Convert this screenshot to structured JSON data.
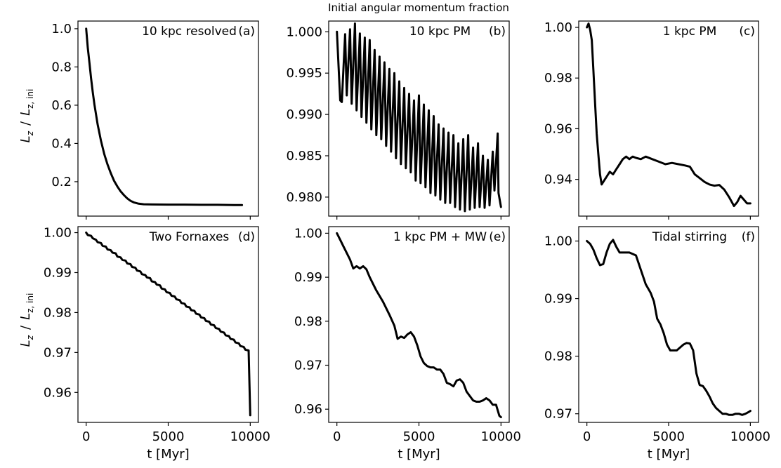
{
  "chart_data": {
    "title": "Initial angular momentum fraction",
    "xlabel": "t [Myr]",
    "ylabel_main": "L",
    "ylabel_sub": "z",
    "ylabel_slash": "/",
    "ylabel_ini_sub": "z, ini",
    "panels": [
      {
        "id": "a",
        "type": "line",
        "label": "10 kpc resolved",
        "letter": "(a)",
        "xlim": [
          -500,
          10500
        ],
        "ylim": [
          0.02,
          1.04
        ],
        "xticks": [
          0,
          5000,
          10000
        ],
        "xtick_labels": [
          "0",
          "5000",
          "10000"
        ],
        "yticks": [
          0.2,
          0.4,
          0.6,
          0.8,
          1.0
        ],
        "ytick_labels": [
          "0.2",
          "0.4",
          "0.6",
          "0.8",
          "1.0"
        ],
        "x": [
          0,
          100,
          200,
          300,
          400,
          500,
          700,
          900,
          1100,
          1300,
          1500,
          1700,
          1900,
          2100,
          2300,
          2500,
          2700,
          2900,
          3200,
          3500,
          4000,
          5000,
          6000,
          7000,
          8000,
          9000,
          9500
        ],
        "values": [
          1.0,
          0.9,
          0.82,
          0.74,
          0.67,
          0.605,
          0.5,
          0.415,
          0.345,
          0.29,
          0.245,
          0.205,
          0.175,
          0.15,
          0.13,
          0.113,
          0.1,
          0.092,
          0.085,
          0.082,
          0.081,
          0.08,
          0.08,
          0.079,
          0.079,
          0.078,
          0.078
        ]
      },
      {
        "id": "b",
        "type": "line",
        "label": "10 kpc PM",
        "letter": "(b)",
        "xlim": [
          -500,
          10500
        ],
        "ylim": [
          0.9777,
          1.0013
        ],
        "xticks": [
          0,
          5000,
          10000
        ],
        "xtick_labels": [
          "0",
          "5000",
          "10000"
        ],
        "yticks": [
          0.98,
          0.985,
          0.99,
          0.995,
          1.0
        ],
        "ytick_labels": [
          "0.980",
          "0.985",
          "0.990",
          "0.995",
          "1.000"
        ],
        "x": [
          0,
          200,
          300,
          500,
          600,
          800,
          900,
          1100,
          1200,
          1400,
          1500,
          1700,
          1800,
          2000,
          2100,
          2300,
          2400,
          2600,
          2700,
          2900,
          3000,
          3200,
          3300,
          3500,
          3600,
          3800,
          3900,
          4100,
          4200,
          4400,
          4500,
          4700,
          4800,
          5000,
          5100,
          5300,
          5400,
          5600,
          5700,
          5900,
          6000,
          6200,
          6300,
          6500,
          6600,
          6800,
          6900,
          7100,
          7200,
          7400,
          7500,
          7700,
          7800,
          8000,
          8100,
          8300,
          8400,
          8600,
          8700,
          8900,
          9000,
          9200,
          9300,
          9500,
          9600,
          9800,
          9850,
          10000
        ],
        "values": [
          1.0,
          0.9917,
          0.9915,
          0.9997,
          0.9923,
          1.0003,
          0.9913,
          1.001,
          0.9905,
          0.9998,
          0.9897,
          0.9993,
          0.989,
          0.999,
          0.9882,
          0.9978,
          0.9875,
          0.997,
          0.987,
          0.9963,
          0.9862,
          0.9955,
          0.9855,
          0.995,
          0.9847,
          0.994,
          0.984,
          0.9932,
          0.9835,
          0.9925,
          0.983,
          0.9917,
          0.982,
          0.9923,
          0.9817,
          0.9912,
          0.9812,
          0.9905,
          0.9805,
          0.9898,
          0.9802,
          0.9888,
          0.9797,
          0.9883,
          0.9793,
          0.9878,
          0.9793,
          0.9875,
          0.9788,
          0.9865,
          0.9785,
          0.987,
          0.9783,
          0.9875,
          0.9785,
          0.986,
          0.9787,
          0.9865,
          0.9788,
          0.985,
          0.9787,
          0.9845,
          0.979,
          0.9855,
          0.9808,
          0.9877,
          0.9805,
          0.9788
        ]
      },
      {
        "id": "c",
        "type": "line",
        "label": "1 kpc PM",
        "letter": "(c)",
        "xlim": [
          -500,
          10500
        ],
        "ylim": [
          0.9255,
          1.0025
        ],
        "xticks": [
          0,
          5000,
          10000
        ],
        "xtick_labels": [
          "0",
          "5000",
          "10000"
        ],
        "yticks": [
          0.94,
          0.96,
          0.98,
          1.0
        ],
        "ytick_labels": [
          "0.94",
          "0.96",
          "0.98",
          "1.00"
        ],
        "x": [
          0,
          100,
          200,
          300,
          400,
          500,
          600,
          700,
          800,
          900,
          1000,
          1200,
          1400,
          1600,
          1800,
          2000,
          2200,
          2400,
          2600,
          2800,
          3000,
          3300,
          3600,
          4000,
          4400,
          4800,
          5200,
          5600,
          6000,
          6300,
          6600,
          6900,
          7200,
          7500,
          7800,
          8100,
          8400,
          8700,
          9000,
          9200,
          9400,
          9600,
          9800,
          10000
        ],
        "values": [
          1.0,
          1.0015,
          0.999,
          0.995,
          0.983,
          0.97,
          0.958,
          0.95,
          0.942,
          0.938,
          0.939,
          0.941,
          0.943,
          0.942,
          0.944,
          0.946,
          0.948,
          0.949,
          0.948,
          0.949,
          0.9485,
          0.948,
          0.949,
          0.948,
          0.947,
          0.946,
          0.9465,
          0.946,
          0.9455,
          0.945,
          0.942,
          0.9405,
          0.939,
          0.938,
          0.9375,
          0.9378,
          0.936,
          0.933,
          0.9295,
          0.931,
          0.9335,
          0.932,
          0.9305,
          0.9305
        ]
      },
      {
        "id": "d",
        "type": "line",
        "label": "Two Fornaxes",
        "letter": "(d)",
        "xlim": [
          -500,
          10500
        ],
        "ylim": [
          0.9525,
          1.0015
        ],
        "xticks": [
          0,
          5000,
          10000
        ],
        "xtick_labels": [
          "0",
          "5000",
          "10000"
        ],
        "yticks": [
          0.96,
          0.97,
          0.98,
          0.99,
          1.0
        ],
        "ytick_labels": [
          "0.96",
          "0.97",
          "0.98",
          "0.99",
          "1.00"
        ],
        "x": [
          0,
          100,
          300,
          400,
          600,
          700,
          900,
          1000,
          1200,
          1300,
          1500,
          1600,
          1800,
          1900,
          2100,
          2200,
          2400,
          2500,
          2700,
          2800,
          3000,
          3100,
          3300,
          3400,
          3600,
          3700,
          3900,
          4000,
          4200,
          4300,
          4500,
          4600,
          4800,
          4900,
          5100,
          5200,
          5400,
          5500,
          5700,
          5800,
          6000,
          6100,
          6300,
          6400,
          6600,
          6700,
          6900,
          7000,
          7200,
          7300,
          7500,
          7600,
          7800,
          7900,
          8100,
          8200,
          8400,
          8500,
          8700,
          8800,
          9000,
          9100,
          9300,
          9400,
          9600,
          9700,
          9900,
          10000
        ],
        "values": [
          1.0,
          0.9994,
          0.9992,
          0.9986,
          0.9982,
          0.9976,
          0.9974,
          0.9967,
          0.9965,
          0.9958,
          0.9956,
          0.995,
          0.9948,
          0.994,
          0.9938,
          0.9932,
          0.993,
          0.9923,
          0.9921,
          0.9914,
          0.9912,
          0.9905,
          0.9903,
          0.9896,
          0.9894,
          0.9888,
          0.9886,
          0.9878,
          0.9876,
          0.987,
          0.9868,
          0.986,
          0.9858,
          0.9851,
          0.9849,
          0.9842,
          0.984,
          0.9833,
          0.9831,
          0.9824,
          0.9822,
          0.9815,
          0.9813,
          0.9806,
          0.9804,
          0.9797,
          0.9795,
          0.9788,
          0.9786,
          0.9779,
          0.9777,
          0.977,
          0.9768,
          0.9761,
          0.9759,
          0.9752,
          0.975,
          0.9743,
          0.9741,
          0.9734,
          0.9732,
          0.9725,
          0.9723,
          0.9716,
          0.9714,
          0.9707,
          0.9705,
          0.9543
        ]
      },
      {
        "id": "e",
        "type": "line",
        "label": "1 kpc PM + MW",
        "letter": "(e)",
        "xlim": [
          -500,
          10500
        ],
        "ylim": [
          0.957,
          1.0015
        ],
        "xticks": [
          0,
          5000,
          10000
        ],
        "xtick_labels": [
          "0",
          "5000",
          "10000"
        ],
        "yticks": [
          0.96,
          0.97,
          0.98,
          0.99,
          1.0
        ],
        "ytick_labels": [
          "0.96",
          "0.97",
          "0.98",
          "0.99",
          "1.00"
        ],
        "x": [
          0,
          200,
          400,
          600,
          800,
          1000,
          1200,
          1400,
          1600,
          1800,
          2000,
          2400,
          2800,
          3200,
          3500,
          3700,
          3900,
          4100,
          4300,
          4500,
          4700,
          4900,
          5100,
          5300,
          5500,
          5700,
          5900,
          6100,
          6300,
          6500,
          6700,
          6900,
          7100,
          7300,
          7500,
          7700,
          7900,
          8100,
          8300,
          8500,
          8700,
          8900,
          9100,
          9300,
          9500,
          9700,
          9900,
          10000
        ],
        "values": [
          1.0,
          0.9985,
          0.997,
          0.9955,
          0.994,
          0.992,
          0.9925,
          0.992,
          0.9925,
          0.9918,
          0.99,
          0.987,
          0.9845,
          0.9815,
          0.979,
          0.976,
          0.9765,
          0.9762,
          0.977,
          0.9775,
          0.9765,
          0.9745,
          0.972,
          0.9705,
          0.9698,
          0.9695,
          0.9695,
          0.969,
          0.969,
          0.968,
          0.966,
          0.9657,
          0.9652,
          0.9665,
          0.9668,
          0.966,
          0.964,
          0.963,
          0.962,
          0.9617,
          0.9617,
          0.962,
          0.9625,
          0.962,
          0.961,
          0.961,
          0.9585,
          0.9582
        ]
      },
      {
        "id": "f",
        "type": "line",
        "label": "Tidal stirring",
        "letter": "(f)",
        "xlim": [
          -500,
          10500
        ],
        "ylim": [
          0.9685,
          1.0025
        ],
        "xticks": [
          0,
          5000,
          10000
        ],
        "xtick_labels": [
          "0",
          "5000",
          "10000"
        ],
        "yticks": [
          0.97,
          0.98,
          0.99,
          1.0
        ],
        "ytick_labels": [
          "0.97",
          "0.98",
          "0.99",
          "1.00"
        ],
        "x": [
          0,
          200,
          400,
          600,
          800,
          1000,
          1200,
          1400,
          1600,
          1800,
          2000,
          2300,
          2600,
          3000,
          3300,
          3600,
          3900,
          4100,
          4300,
          4500,
          4700,
          4900,
          5100,
          5300,
          5500,
          5700,
          5900,
          6100,
          6300,
          6500,
          6700,
          6900,
          7100,
          7300,
          7500,
          7700,
          7900,
          8100,
          8300,
          8500,
          8700,
          8900,
          9100,
          9300,
          9500,
          9700,
          9900,
          10000
        ],
        "values": [
          1.0,
          0.9995,
          0.9985,
          0.997,
          0.9958,
          0.996,
          0.998,
          0.9995,
          1.0002,
          0.999,
          0.998,
          0.998,
          0.998,
          0.9975,
          0.995,
          0.9925,
          0.991,
          0.9895,
          0.9865,
          0.9855,
          0.984,
          0.982,
          0.981,
          0.981,
          0.981,
          0.9815,
          0.982,
          0.9823,
          0.9822,
          0.981,
          0.977,
          0.975,
          0.9748,
          0.974,
          0.973,
          0.9718,
          0.971,
          0.9705,
          0.97,
          0.97,
          0.9698,
          0.9698,
          0.97,
          0.97,
          0.9698,
          0.97,
          0.9703,
          0.9705
        ]
      }
    ]
  }
}
